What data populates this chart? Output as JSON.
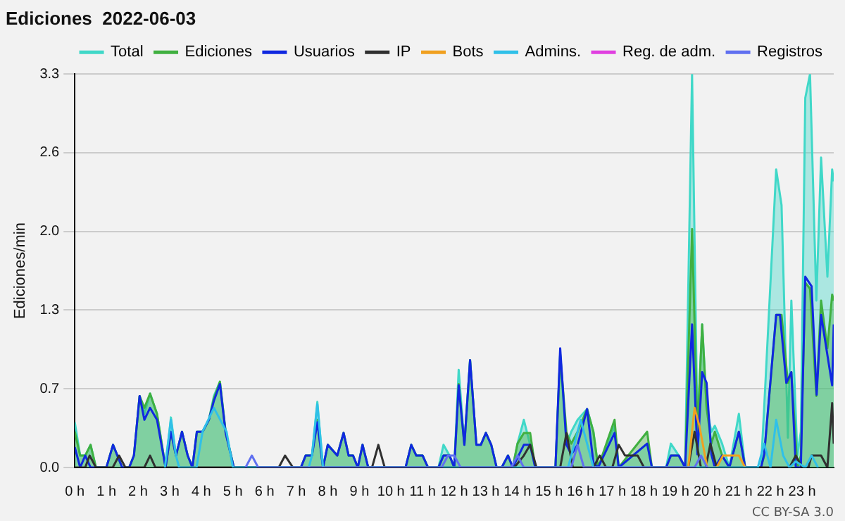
{
  "chart_data": {
    "type": "line",
    "title": "Ediciones  2022-06-03",
    "ylabel": "Ediciones/min",
    "annotations": [
      "CC BY-SA 3.0"
    ],
    "xlim": [
      0,
      24
    ],
    "xticks": [
      {
        "value": 0,
        "label": "0 h"
      },
      {
        "value": 1,
        "label": "1 h"
      },
      {
        "value": 2,
        "label": "2 h"
      },
      {
        "value": 3,
        "label": "3 h"
      },
      {
        "value": 4,
        "label": "4 h"
      },
      {
        "value": 5,
        "label": "5 h"
      },
      {
        "value": 6,
        "label": "6 h"
      },
      {
        "value": 7,
        "label": "7 h"
      },
      {
        "value": 8,
        "label": "8 h"
      },
      {
        "value": 9,
        "label": "9 h"
      },
      {
        "value": 10,
        "label": "10 h"
      },
      {
        "value": 11,
        "label": "11 h"
      },
      {
        "value": 12,
        "label": "12 h"
      },
      {
        "value": 13,
        "label": "13 h"
      },
      {
        "value": 14,
        "label": "14 h"
      },
      {
        "value": 15,
        "label": "15 h"
      },
      {
        "value": 16,
        "label": "16 h"
      },
      {
        "value": 17,
        "label": "17 h"
      },
      {
        "value": 18,
        "label": "18 h"
      },
      {
        "value": 19,
        "label": "19 h"
      },
      {
        "value": 20,
        "label": "20 h"
      },
      {
        "value": 21,
        "label": "21 h"
      },
      {
        "value": 22,
        "label": "22 h"
      },
      {
        "value": 23,
        "label": "23 h"
      }
    ],
    "ylim": [
      0,
      3.3
    ],
    "yticks": [
      {
        "value": 0,
        "label": "0.0"
      },
      {
        "value": 0.66,
        "label": "0.7"
      },
      {
        "value": 1.32,
        "label": "1.3"
      },
      {
        "value": 1.98,
        "label": "2.0"
      },
      {
        "value": 2.64,
        "label": "2.6"
      },
      {
        "value": 3.3,
        "label": "3.3"
      }
    ],
    "grid": "y",
    "legend": "top right",
    "marker": "none",
    "line_style": "solid",
    "series": [
      {
        "name": "Total",
        "type": "area",
        "color": "#40d8c8",
        "x": [
          0,
          0.17,
          0.33,
          0.5,
          0.67,
          1.0,
          1.21,
          1.5,
          1.72,
          1.87,
          2.05,
          2.2,
          2.38,
          2.6,
          2.87,
          3.04,
          3.2,
          3.39,
          3.57,
          3.72,
          3.86,
          4.04,
          4.24,
          4.4,
          4.59,
          4.77,
          5.03,
          7.15,
          7.3,
          7.5,
          7.67,
          7.85,
          8.0,
          8.3,
          8.5,
          8.66,
          8.8,
          8.95,
          9.1,
          9.28,
          10.46,
          10.64,
          10.8,
          11.0,
          11.17,
          11.5,
          11.66,
          11.85,
          12.0,
          12.14,
          12.32,
          12.5,
          12.7,
          12.84,
          13.0,
          13.17,
          13.34,
          13.5,
          13.7,
          13.85,
          14.0,
          14.2,
          14.4,
          14.56,
          15.2,
          15.35,
          15.55,
          15.7,
          15.9,
          16.2,
          16.4,
          16.55,
          17.07,
          17.2,
          18.1,
          18.25,
          18.7,
          18.85,
          19.1,
          19.3,
          19.52,
          19.69,
          19.84,
          19.98,
          20.13,
          20.24,
          20.47,
          20.7,
          21.0,
          21.2,
          21.7,
          21.8,
          22.18,
          22.35,
          22.55,
          22.66,
          22.85,
          22.96,
          23.1,
          23.25,
          23.45,
          23.6,
          23.8,
          23.95,
          24
        ],
        "values": [
          0.38,
          0.1,
          0.1,
          0.19,
          0,
          0,
          0.19,
          0,
          0,
          0.1,
          0.6,
          0.45,
          0.62,
          0.45,
          0,
          0.42,
          0.1,
          0.3,
          0.1,
          0,
          0.3,
          0.3,
          0.4,
          0.6,
          0.72,
          0.3,
          0,
          0,
          0.1,
          0.1,
          0.55,
          0,
          0.19,
          0.1,
          0.29,
          0.1,
          0.1,
          0,
          0.19,
          0,
          0,
          0.19,
          0.1,
          0.1,
          0,
          0,
          0.19,
          0.1,
          0,
          0.82,
          0.19,
          0.9,
          0.19,
          0.19,
          0.29,
          0.19,
          0,
          0,
          0.1,
          0,
          0.2,
          0.4,
          0.19,
          0,
          0,
          0.95,
          0.19,
          0.3,
          0.4,
          0.49,
          0.3,
          0,
          0.35,
          0,
          0.2,
          0,
          0,
          0.2,
          0.1,
          0,
          3.3,
          0.3,
          1.2,
          0.5,
          0.3,
          0.35,
          0.2,
          0,
          0.45,
          0,
          0,
          0.5,
          2.5,
          2.2,
          0.25,
          1.4,
          0.1,
          0.3,
          3.1,
          3.3,
          1.4,
          2.6,
          1.6,
          2.5,
          2.4
        ]
      },
      {
        "name": "Ediciones",
        "type": "area",
        "color": "#40b040",
        "x": [
          0,
          0.17,
          0.33,
          0.5,
          0.67,
          1.0,
          1.21,
          1.5,
          1.72,
          1.87,
          2.05,
          2.2,
          2.38,
          2.6,
          2.87,
          3.04,
          3.2,
          3.39,
          3.57,
          3.72,
          3.86,
          4.04,
          4.24,
          4.4,
          4.59,
          4.77,
          5.03,
          7.15,
          7.3,
          7.5,
          7.67,
          7.85,
          8.0,
          8.3,
          8.5,
          8.66,
          8.8,
          8.95,
          9.1,
          9.28,
          10.46,
          10.64,
          10.8,
          11.0,
          11.17,
          11.5,
          11.66,
          11.85,
          12.0,
          12.14,
          12.32,
          12.5,
          12.7,
          12.84,
          13.0,
          13.17,
          13.34,
          13.5,
          13.7,
          13.85,
          14.0,
          14.2,
          14.4,
          14.56,
          15.2,
          15.35,
          15.55,
          15.7,
          15.9,
          16.2,
          16.4,
          16.55,
          17.07,
          17.2,
          18.1,
          18.25,
          18.7,
          18.85,
          19.1,
          19.3,
          19.52,
          19.69,
          19.84,
          19.98,
          20.13,
          20.24,
          20.47,
          20.7,
          21.0,
          21.2,
          21.7,
          21.8,
          22.18,
          22.35,
          22.55,
          22.66,
          22.85,
          22.96,
          23.1,
          23.25,
          23.45,
          23.6,
          23.8,
          23.95,
          24
        ],
        "values": [
          0.3,
          0.1,
          0.1,
          0.19,
          0,
          0,
          0.19,
          0,
          0,
          0.1,
          0.6,
          0.5,
          0.62,
          0.45,
          0,
          0.3,
          0.1,
          0.3,
          0.1,
          0,
          0.3,
          0.3,
          0.4,
          0.58,
          0.72,
          0.3,
          0,
          0,
          0.1,
          0.1,
          0.4,
          0,
          0.19,
          0.1,
          0.29,
          0.1,
          0.1,
          0,
          0.19,
          0,
          0,
          0.19,
          0.1,
          0.1,
          0,
          0,
          0.1,
          0.1,
          0,
          0.7,
          0.19,
          0.9,
          0.19,
          0.19,
          0.29,
          0.19,
          0,
          0,
          0.1,
          0,
          0.2,
          0.29,
          0.29,
          0,
          0,
          0.95,
          0.29,
          0.2,
          0.3,
          0.49,
          0.3,
          0,
          0.4,
          0,
          0.3,
          0,
          0,
          0.1,
          0.1,
          0,
          2.0,
          0.3,
          1.2,
          0.5,
          0.2,
          0.3,
          0.1,
          0,
          0.3,
          0,
          0,
          0.1,
          1.28,
          1.28,
          0.71,
          0.8,
          0,
          0.1,
          1.55,
          1.5,
          0.6,
          1.4,
          1.0,
          1.45,
          1.4
        ]
      },
      {
        "name": "Usuarios",
        "color": "#1028e0",
        "x": [
          0,
          0.17,
          0.33,
          0.5,
          0.67,
          1.0,
          1.21,
          1.5,
          1.72,
          1.87,
          2.05,
          2.2,
          2.38,
          2.6,
          2.87,
          3.04,
          3.2,
          3.39,
          3.57,
          3.72,
          3.86,
          4.04,
          4.24,
          4.4,
          4.59,
          4.77,
          5.03,
          7.15,
          7.3,
          7.5,
          7.67,
          7.85,
          8.0,
          8.3,
          8.5,
          8.66,
          8.8,
          8.95,
          9.1,
          9.28,
          10.46,
          10.64,
          10.8,
          11.0,
          11.17,
          11.5,
          11.66,
          11.85,
          12.0,
          12.14,
          12.32,
          12.5,
          12.7,
          12.84,
          13.0,
          13.17,
          13.34,
          13.5,
          13.7,
          13.85,
          14.2,
          14.4,
          14.56,
          15.2,
          15.35,
          15.55,
          15.7,
          15.9,
          16.2,
          16.4,
          16.55,
          17.07,
          17.2,
          18.1,
          18.25,
          18.7,
          18.85,
          19.1,
          19.3,
          19.52,
          19.69,
          19.84,
          19.98,
          20.13,
          20.24,
          20.47,
          20.7,
          21.0,
          21.2,
          21.7,
          21.8,
          22.18,
          22.3,
          22.5,
          22.66,
          22.8,
          22.96,
          23.1,
          23.3,
          23.46,
          23.6,
          23.95,
          24
        ],
        "values": [
          0.17,
          0,
          0.1,
          0,
          0,
          0,
          0.19,
          0,
          0,
          0.1,
          0.6,
          0.4,
          0.5,
          0.4,
          0,
          0.3,
          0.1,
          0.3,
          0.1,
          0,
          0.3,
          0.3,
          0.4,
          0.56,
          0.7,
          0.29,
          0,
          0,
          0.1,
          0.1,
          0.38,
          0,
          0.19,
          0.1,
          0.29,
          0.1,
          0.1,
          0,
          0.19,
          0,
          0,
          0.19,
          0.1,
          0.1,
          0,
          0,
          0.1,
          0.1,
          0,
          0.69,
          0.19,
          0.9,
          0.19,
          0.19,
          0.29,
          0.19,
          0,
          0,
          0.1,
          0,
          0.19,
          0.19,
          0,
          0,
          1.0,
          0.19,
          0.11,
          0.19,
          0.49,
          0.04,
          0,
          0.29,
          0,
          0.2,
          0,
          0,
          0.1,
          0.1,
          0,
          1.2,
          0.11,
          0.8,
          0.71,
          0.11,
          0,
          0.1,
          0,
          0.3,
          0,
          0,
          0.11,
          1.28,
          1.28,
          0.71,
          0.8,
          0,
          0,
          1.6,
          1.52,
          0.61,
          1.28,
          0.69,
          1.2
        ]
      },
      {
        "name": "IP",
        "color": "#303030",
        "x": [
          0,
          0.33,
          0.47,
          0.67,
          1.2,
          1.4,
          1.6,
          2.2,
          2.38,
          2.55,
          6.45,
          6.65,
          6.9,
          9.4,
          9.6,
          9.8,
          13.9,
          14.2,
          14.4,
          14.6,
          15.35,
          15.55,
          15.75,
          16.4,
          16.6,
          16.8,
          17.0,
          17.2,
          17.4,
          17.6,
          17.8,
          18.0,
          19.4,
          19.6,
          19.8,
          19.95,
          20.1,
          20.3,
          22.6,
          22.8,
          23.0,
          23.2,
          23.3,
          23.6,
          23.8,
          23.95,
          24
        ],
        "values": [
          0,
          0,
          0.1,
          0,
          0,
          0.1,
          0,
          0,
          0.1,
          0,
          0,
          0.1,
          0,
          0,
          0.19,
          0,
          0,
          0.1,
          0.19,
          0,
          0,
          0.29,
          0,
          0,
          0.1,
          0,
          0,
          0.19,
          0.1,
          0.1,
          0.1,
          0,
          0,
          0.3,
          0,
          0,
          0.2,
          0,
          0,
          0.1,
          0,
          0,
          0.1,
          0.1,
          0,
          0.54,
          0.2
        ]
      },
      {
        "name": "Bots",
        "color": "#f0a020",
        "x": [
          19.4,
          19.6,
          19.75,
          20.0,
          20.3,
          20.5,
          20.8,
          21.0,
          21.2
        ],
        "values": [
          0,
          0.5,
          0.35,
          0,
          0,
          0.1,
          0.1,
          0.1,
          0
        ]
      },
      {
        "name": "Admins.",
        "color": "#30c0e8",
        "x": [
          2.85,
          3.04,
          3.2,
          3.3,
          3.85,
          4.04,
          4.4,
          4.8,
          5.0,
          7.4,
          7.5,
          7.67,
          7.85,
          15.6,
          15.8,
          16.0,
          16.2,
          16.4,
          21.6,
          21.8,
          22.0,
          22.18,
          22.4,
          22.6,
          22.8,
          23.1,
          23.3,
          23.5
        ],
        "values": [
          0,
          0.4,
          0.1,
          0,
          0,
          0.3,
          0.5,
          0.3,
          0,
          0,
          0.1,
          0.53,
          0,
          0,
          0.2,
          0.4,
          0.2,
          0,
          0,
          0.2,
          0,
          0.4,
          0.1,
          0,
          0.05,
          0,
          0.1,
          0
        ]
      },
      {
        "name": "Reg. de adm.",
        "color": "#e040e0"
      },
      {
        "name": "Registros",
        "color": "#6070f0",
        "x": [
          5.4,
          5.6,
          5.8,
          11.6,
          11.8,
          12.0,
          12.2,
          13.8,
          14.0,
          14.2,
          15.7,
          15.9,
          16.1,
          19.6,
          19.8,
          20.0
        ],
        "values": [
          0,
          0.1,
          0,
          0,
          0.1,
          0.1,
          0,
          0,
          0.1,
          0,
          0,
          0.19,
          0,
          0,
          0.1,
          0
        ]
      }
    ]
  }
}
